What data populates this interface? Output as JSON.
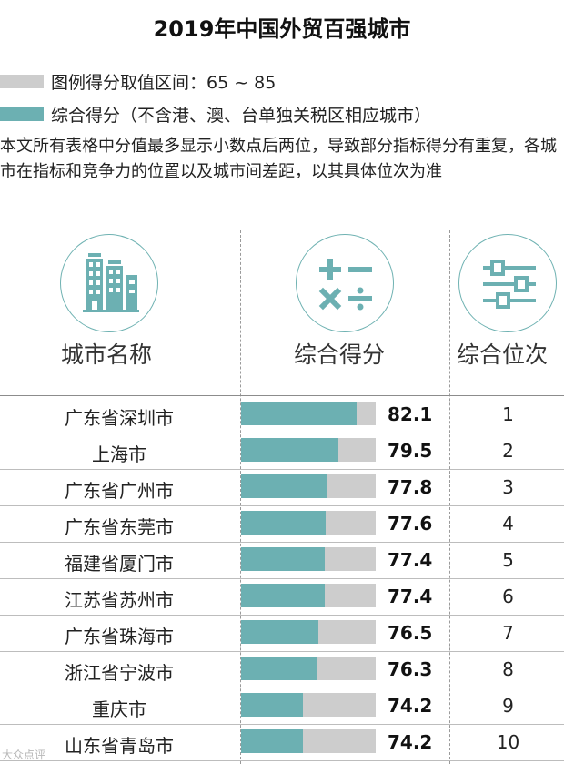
{
  "title": "2019年中国外贸百强城市",
  "legend": {
    "range_label": "图例得分取值区间：65 ~ 85",
    "score_label": "综合得分（不含港、澳、台单独关税区相应城市）",
    "range_color": "#cdcdcd",
    "score_color": "#6cb0b2"
  },
  "note": "本文所有表格中分值最多显示小数点后两位，导致部分指标得分有重复，各城市在指标和竞争力的位置以及城市间差距，以其具体位次为准",
  "columns": {
    "city": "城市名称",
    "score": "综合得分",
    "rank": "综合位次"
  },
  "icons": [
    "building-icon",
    "math-symbols-icon",
    "sliders-icon"
  ],
  "watermark": "大众点评",
  "chart_data": {
    "type": "bar",
    "orientation": "horizontal",
    "categories": [
      "广东省深圳市",
      "上海市",
      "广东省广州市",
      "广东省东莞市",
      "福建省厦门市",
      "江苏省苏州市",
      "广东省珠海市",
      "浙江省宁波市",
      "重庆市",
      "山东省青岛市"
    ],
    "values": [
      82.1,
      79.5,
      77.8,
      77.6,
      77.4,
      77.4,
      76.5,
      76.3,
      74.2,
      74.2
    ],
    "ranks": [
      "1",
      "2",
      "3",
      "4",
      "5",
      "6",
      "7",
      "8",
      "9",
      "10"
    ],
    "value_labels": [
      "82.1",
      "79.5",
      "77.8",
      "77.6",
      "77.4",
      "77.4",
      "76.5",
      "76.3",
      "74.2",
      "74.2"
    ],
    "xlim": [
      65,
      85
    ]
  }
}
